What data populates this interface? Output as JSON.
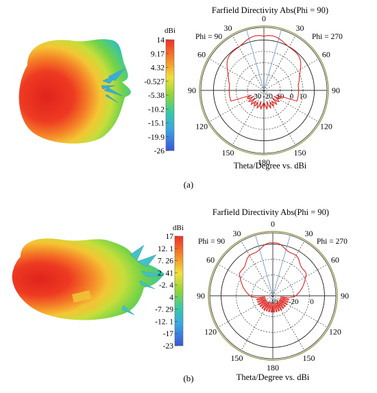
{
  "panels": [
    {
      "id": "a",
      "caption": "(a)",
      "colorbar": {
        "unit": "dBi",
        "ticks": [
          "14",
          "9.17",
          "4.32",
          "-0.527",
          "-5.38",
          "-10.2",
          "-15.1",
          "-19.9",
          "-26"
        ]
      },
      "polar": {
        "title": "Farfield Directivity Abs(Phi = 90)",
        "left_label": "Phi = 90",
        "right_label": "Phi = 270",
        "angle_labels": [
          "0",
          "30",
          "60",
          "90",
          "120",
          "150",
          "180",
          "150",
          "120",
          "90",
          "60",
          "30"
        ],
        "radial_labels": [
          "-30",
          "-20",
          "-10",
          "0",
          "10"
        ],
        "axis_caption": "Theta/Degree vs. dBi"
      }
    },
    {
      "id": "b",
      "caption": "(b)",
      "colorbar": {
        "unit": "dBi",
        "ticks": [
          "17",
          "12. 1",
          "7. 26",
          "2. 41",
          "-2. 4",
          "4",
          "-7. 29",
          "-12. 1",
          "-17",
          "-23"
        ]
      },
      "polar": {
        "title": "Farfield Directivity Abs(Phi = 90)",
        "left_label": "Phi = 90",
        "right_label": "Phi = 270",
        "angle_labels": [
          "0",
          "30",
          "60",
          "90",
          "120",
          "150",
          "180",
          "150",
          "120",
          "90",
          "60",
          "30"
        ],
        "radial_labels": [
          "-40",
          "-20",
          "0"
        ],
        "axis_caption": "Theta/Degree vs. dBi"
      }
    }
  ],
  "colors": {
    "pattern": "#e0221f",
    "outer_ring": "#9a9a50",
    "beam_lines": "#7fa6d6",
    "gradient_top": "#f0302a",
    "gradient_bottom": "#3a6bd8"
  }
}
